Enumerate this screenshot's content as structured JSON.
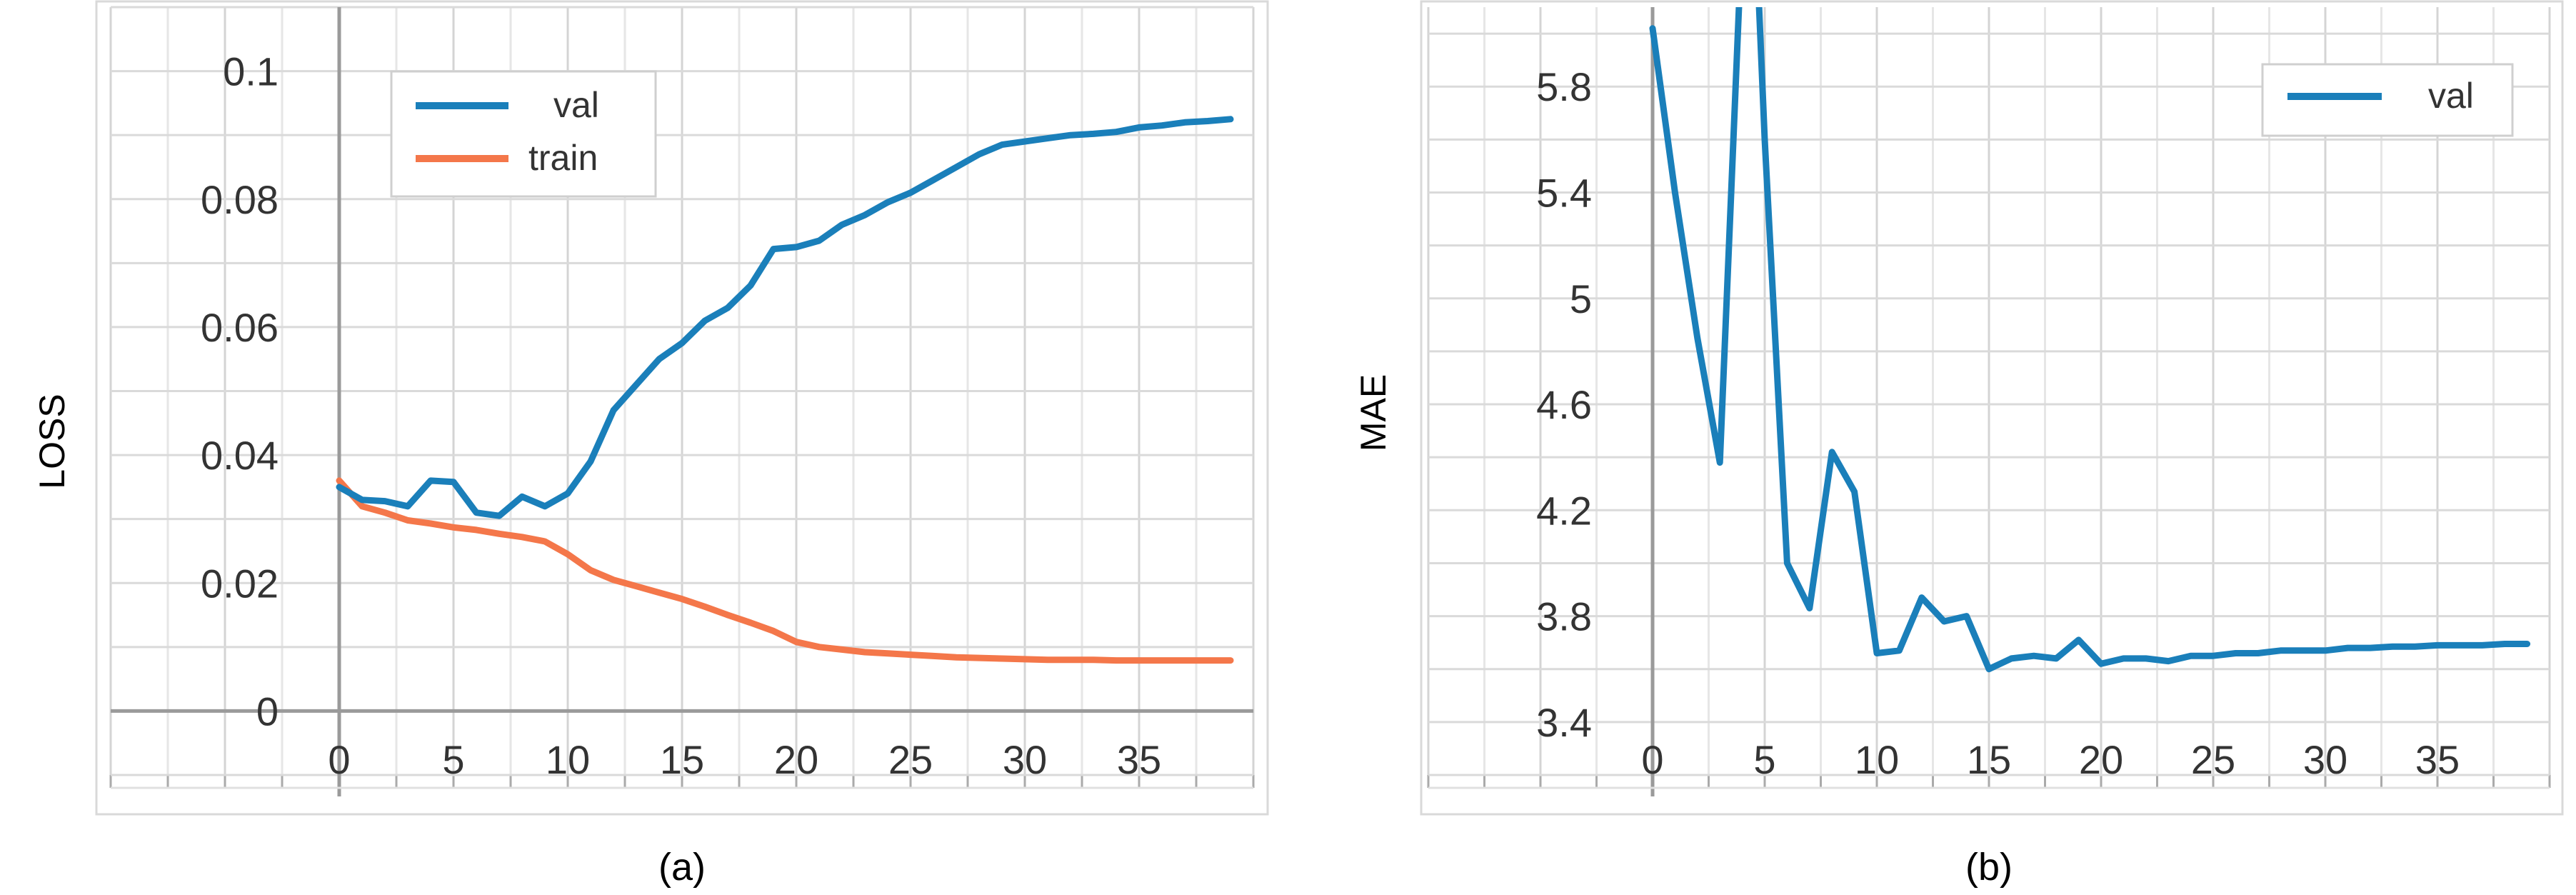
{
  "chart_data": [
    {
      "type": "line",
      "panel_label": "(a)",
      "ylabel": "LOSS",
      "xlim": [
        -10,
        40
      ],
      "ylim": [
        -0.01,
        0.11
      ],
      "xticks": [
        0,
        5,
        10,
        15,
        20,
        25,
        30,
        35
      ],
      "xtick_labels": [
        "0",
        "5",
        "10",
        "15",
        "20",
        "25",
        "30",
        "35"
      ],
      "yticks": [
        0,
        0.02,
        0.04,
        0.06,
        0.08,
        0.1
      ],
      "ytick_labels": [
        "0",
        "0.02",
        "0.04",
        "0.06",
        "0.08",
        "0.1"
      ],
      "grid": true,
      "legend_position": "top-center",
      "x": [
        0,
        1,
        2,
        3,
        4,
        5,
        6,
        7,
        8,
        9,
        10,
        11,
        12,
        13,
        14,
        15,
        16,
        17,
        18,
        19,
        20,
        21,
        22,
        23,
        24,
        25,
        26,
        27,
        28,
        29,
        30,
        31,
        32,
        33,
        34,
        35,
        36,
        37,
        38,
        39
      ],
      "series": [
        {
          "name": "val",
          "color": "#1a7fba",
          "values": [
            0.035,
            0.033,
            0.0328,
            0.032,
            0.036,
            0.0358,
            0.031,
            0.0305,
            0.0335,
            0.032,
            0.034,
            0.039,
            0.047,
            0.051,
            0.055,
            0.0575,
            0.061,
            0.063,
            0.0665,
            0.0722,
            0.0725,
            0.0735,
            0.076,
            0.0775,
            0.0795,
            0.081,
            0.083,
            0.085,
            0.087,
            0.0885,
            0.089,
            0.0895,
            0.09,
            0.0902,
            0.0905,
            0.0912,
            0.0915,
            0.092,
            0.0922,
            0.0925
          ]
        },
        {
          "name": "train",
          "color": "#f4774a",
          "values": [
            0.036,
            0.032,
            0.031,
            0.0298,
            0.0293,
            0.0287,
            0.0283,
            0.0277,
            0.0272,
            0.0265,
            0.0245,
            0.022,
            0.0205,
            0.0195,
            0.0185,
            0.0175,
            0.0163,
            0.015,
            0.0138,
            0.0125,
            0.0108,
            0.01,
            0.0096,
            0.0092,
            0.009,
            0.0088,
            0.0086,
            0.0084,
            0.0083,
            0.0082,
            0.0081,
            0.008,
            0.008,
            0.008,
            0.0079,
            0.0079,
            0.0079,
            0.0079,
            0.0079,
            0.0079
          ]
        }
      ]
    },
    {
      "type": "line",
      "panel_label": "(b)",
      "ylabel": "MAE",
      "xlim": [
        -10,
        40
      ],
      "ylim": [
        3.2,
        6.1
      ],
      "xticks": [
        0,
        5,
        10,
        15,
        20,
        25,
        30,
        35
      ],
      "xtick_labels": [
        "0",
        "5",
        "10",
        "15",
        "20",
        "25",
        "30",
        "35"
      ],
      "yticks": [
        3.4,
        3.8,
        4.2,
        4.6,
        5,
        5.4,
        5.8
      ],
      "ytick_labels": [
        "3.4",
        "3.8",
        "4.2",
        "4.6",
        "5",
        "5.4",
        "5.8"
      ],
      "grid": true,
      "legend_position": "top-right",
      "x": [
        0,
        1,
        2,
        3,
        4,
        4.6,
        5,
        6,
        7,
        8,
        9,
        10,
        11,
        12,
        13,
        14,
        15,
        16,
        17,
        18,
        19,
        20,
        21,
        22,
        23,
        24,
        25,
        26,
        27,
        28,
        29,
        30,
        31,
        32,
        33,
        34,
        35,
        36,
        37,
        38,
        39
      ],
      "series": [
        {
          "name": "val",
          "color": "#1a7fba",
          "values": [
            6.02,
            5.4,
            4.85,
            4.38,
            6.4,
            6.4,
            5.6,
            4.0,
            3.83,
            4.42,
            4.27,
            3.66,
            3.67,
            3.87,
            3.78,
            3.8,
            3.6,
            3.64,
            3.65,
            3.64,
            3.71,
            3.62,
            3.64,
            3.64,
            3.63,
            3.65,
            3.65,
            3.66,
            3.66,
            3.67,
            3.67,
            3.67,
            3.68,
            3.68,
            3.685,
            3.685,
            3.69,
            3.69,
            3.69,
            3.695,
            3.695
          ]
        }
      ]
    }
  ]
}
